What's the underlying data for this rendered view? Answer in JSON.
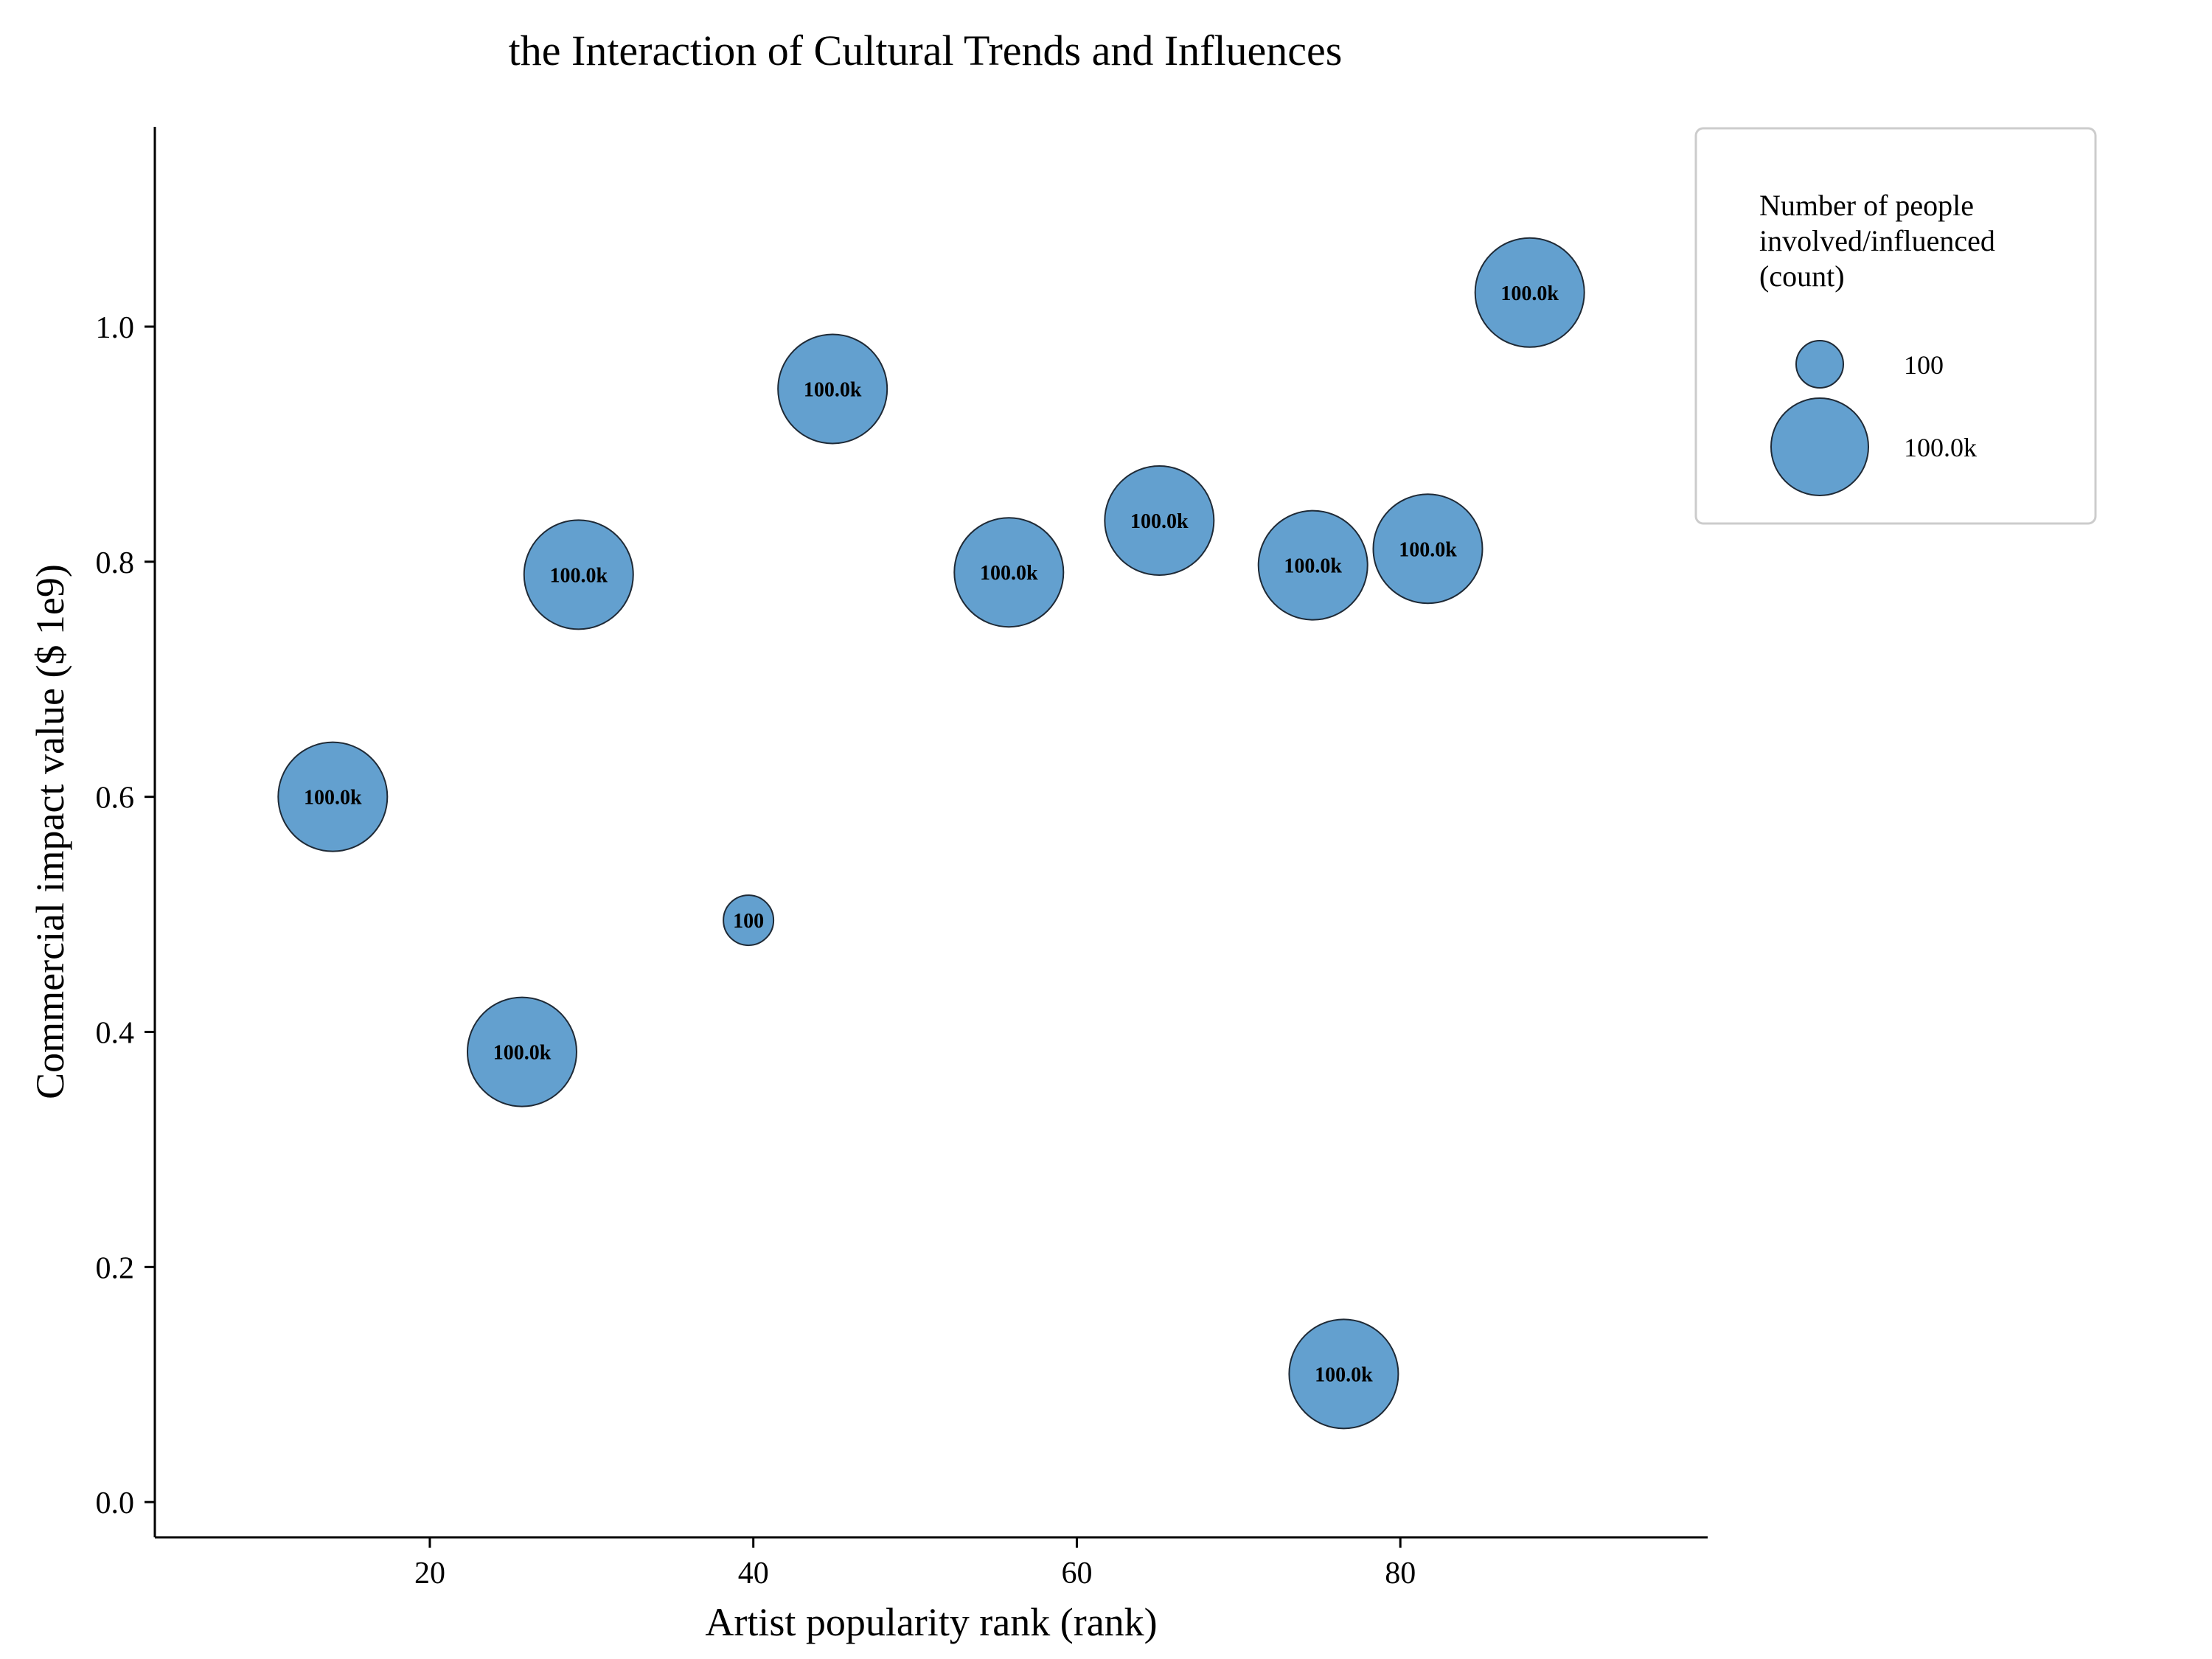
{
  "chart_data": {
    "type": "scatter",
    "title": "the Interaction of Cultural Trends and Influences",
    "xlabel": "Artist popularity rank (rank)",
    "ylabel": "Commercial impact value ($ 1e9)",
    "xlim": [
      3,
      99
    ],
    "ylim": [
      -0.03,
      1.17
    ],
    "xticks": [
      20,
      40,
      60,
      80
    ],
    "yticks": [
      0.0,
      0.2,
      0.4,
      0.6,
      0.8,
      1.0
    ],
    "xtick_labels": [
      "20",
      "40",
      "60",
      "80"
    ],
    "ytick_labels": [
      "0.0",
      "0.2",
      "0.4",
      "0.6",
      "0.8",
      "1.0"
    ],
    "grid": false,
    "legend_placement": "outside top-right",
    "color": "#5b9bcc",
    "edge_color": "#1f2a36",
    "points": [
      {
        "x": 14.0,
        "y": 0.6,
        "size": 100000,
        "label": "100.0k"
      },
      {
        "x": 25.7,
        "y": 0.383,
        "size": 100000,
        "label": "100.0k"
      },
      {
        "x": 29.2,
        "y": 0.789,
        "size": 100000,
        "label": "100.0k"
      },
      {
        "x": 39.7,
        "y": 0.495,
        "size": 100,
        "label": "100"
      },
      {
        "x": 44.9,
        "y": 0.947,
        "size": 100000,
        "label": "100.0k"
      },
      {
        "x": 55.8,
        "y": 0.791,
        "size": 100000,
        "label": "100.0k"
      },
      {
        "x": 65.1,
        "y": 0.835,
        "size": 100000,
        "label": "100.0k"
      },
      {
        "x": 74.6,
        "y": 0.797,
        "size": 100000,
        "label": "100.0k"
      },
      {
        "x": 76.5,
        "y": 0.109,
        "size": 100000,
        "label": "100.0k"
      },
      {
        "x": 81.7,
        "y": 0.811,
        "size": 100000,
        "label": "100.0k"
      },
      {
        "x": 88.0,
        "y": 1.029,
        "size": 100000,
        "label": "100.0k"
      }
    ],
    "legend": {
      "title_lines": [
        "Number of people",
        "involved/influenced",
        "(count)"
      ],
      "entries": [
        {
          "size": 100,
          "label": "100"
        },
        {
          "size": 100000,
          "label": "100.0k"
        }
      ]
    }
  }
}
